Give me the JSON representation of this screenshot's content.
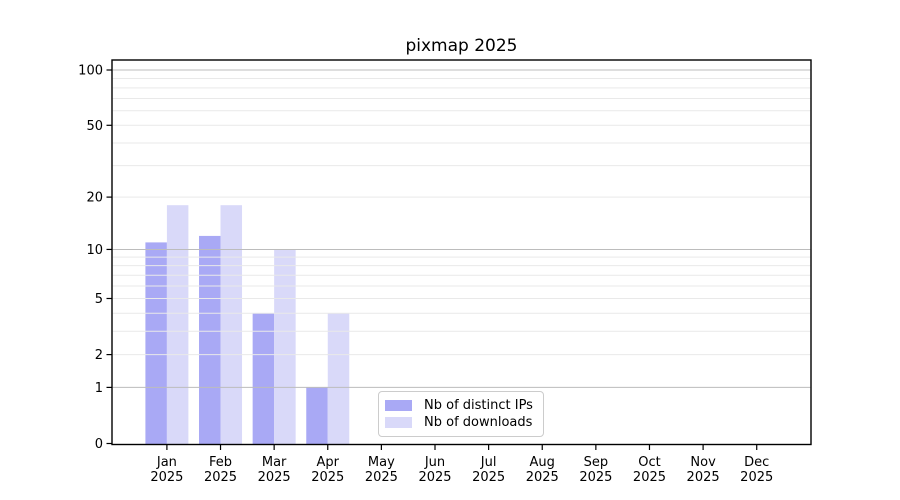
{
  "chart_data": {
    "type": "bar",
    "title": "pixmap 2025",
    "categories": [
      "Jan 2025",
      "Feb 2025",
      "Mar 2025",
      "Apr 2025",
      "May 2025",
      "Jun 2025",
      "Jul 2025",
      "Aug 2025",
      "Sep 2025",
      "Oct 2025",
      "Nov 2025",
      "Dec 2025"
    ],
    "series": [
      {
        "name": "Nb of distinct IPs",
        "color": "#a9a9f5",
        "values": [
          11,
          12,
          4,
          1,
          0,
          0,
          0,
          0,
          0,
          0,
          0,
          0
        ]
      },
      {
        "name": "Nb of downloads",
        "color": "#d9d9f9",
        "values": [
          18,
          18,
          10,
          4,
          0,
          0,
          0,
          0,
          0,
          0,
          0,
          0
        ]
      }
    ],
    "yscale": "log1p",
    "y_ticks": [
      0,
      1,
      2,
      5,
      10,
      20,
      50,
      100
    ],
    "ylim": [
      0,
      113
    ],
    "xlabel": "",
    "ylabel": "",
    "grid": "horizontal",
    "legend_position": "lower center"
  }
}
